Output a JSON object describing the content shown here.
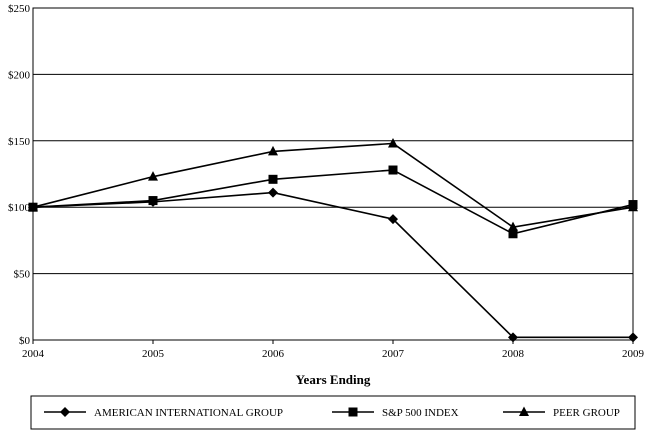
{
  "chart_data": {
    "type": "line",
    "x": [
      "2004",
      "2005",
      "2006",
      "2007",
      "2008",
      "2009"
    ],
    "xlabel": "Years Ending",
    "ylabel": "",
    "ylim": [
      0,
      250
    ],
    "yticks": [
      0,
      50,
      100,
      150,
      200,
      250
    ],
    "ytick_labels": [
      "$0",
      "$50",
      "$100",
      "$150",
      "$200",
      "$250"
    ],
    "grid": "horizontal",
    "legend_position": "bottom",
    "series": [
      {
        "name": "AMERICAN INTERNATIONAL GROUP",
        "marker": "diamond",
        "values": [
          100,
          104,
          111,
          91,
          2,
          2
        ]
      },
      {
        "name": "S&P 500 INDEX",
        "marker": "square",
        "values": [
          100,
          105,
          121,
          128,
          80,
          102
        ]
      },
      {
        "name": "PEER GROUP",
        "marker": "triangle",
        "values": [
          100,
          123,
          142,
          148,
          85,
          100
        ]
      }
    ],
    "colors": {
      "line": "#000000",
      "grid": "#000000",
      "background": "#ffffff"
    }
  }
}
